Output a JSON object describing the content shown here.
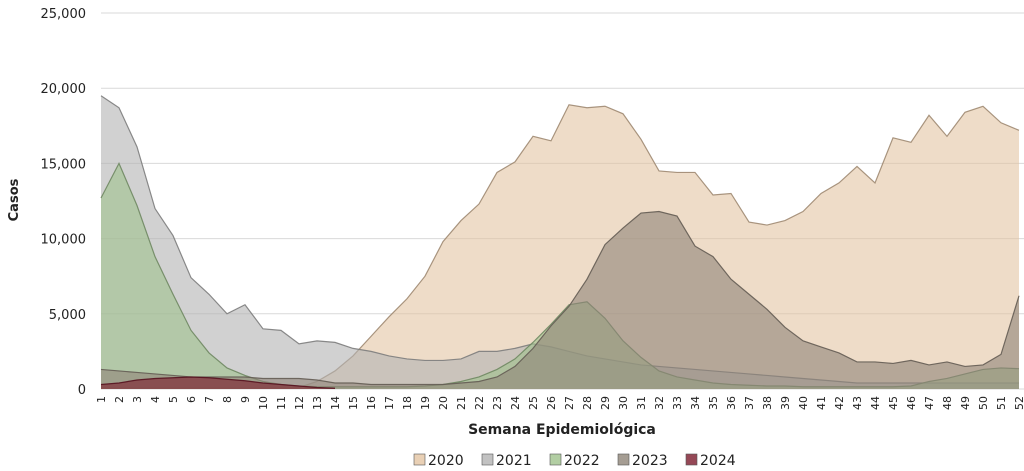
{
  "chart_data": {
    "type": "area",
    "xlabel": "Semana Epidemiológica",
    "ylabel": "Casos",
    "categories": [
      "1",
      "2",
      "3",
      "4",
      "5",
      "6",
      "7",
      "8",
      "9",
      "10",
      "11",
      "12",
      "13",
      "14",
      "15",
      "16",
      "17",
      "18",
      "19",
      "20",
      "21",
      "22",
      "23",
      "24",
      "25",
      "26",
      "27",
      "28",
      "29",
      "30",
      "31",
      "32",
      "33",
      "34",
      "35",
      "36",
      "37",
      "38",
      "39",
      "40",
      "41",
      "42",
      "43",
      "44",
      "45",
      "46",
      "47",
      "48",
      "49",
      "50",
      "51",
      "52"
    ],
    "ylim": [
      0,
      25000
    ],
    "yticks": [
      0,
      {
        "value": 5000,
        "label": "5,000"
      },
      {
        "value": 10000,
        "label": "10,000"
      },
      {
        "value": 15000,
        "label": "15,000"
      },
      {
        "value": 20000,
        "label": "20,000"
      },
      {
        "value": 25000,
        "label": "25,000"
      }
    ],
    "grid": true,
    "series": [
      {
        "name": "2020",
        "color": "#e3c4a3",
        "values": [
          100,
          100,
          100,
          100,
          100,
          100,
          100,
          100,
          100,
          100,
          100,
          100,
          500,
          1200,
          2200,
          3500,
          4800,
          6000,
          7500,
          9800,
          11200,
          12300,
          14400,
          15100,
          16800,
          16500,
          18900,
          18700,
          18800,
          18300,
          16600,
          14500,
          14400,
          14400,
          12900,
          13000,
          11100,
          10900,
          11200,
          11800,
          13000,
          13700,
          14800,
          13700,
          16700,
          16400,
          18200,
          16800,
          18400,
          18800,
          17700,
          17200
        ]
      },
      {
        "name": "2021",
        "color": "#b3b3b3",
        "values": [
          19500,
          18700,
          16100,
          12000,
          10200,
          7400,
          6300,
          5000,
          5600,
          4000,
          3900,
          3000,
          3200,
          3100,
          2700,
          2500,
          2200,
          2000,
          1900,
          1900,
          2000,
          2500,
          2500,
          2700,
          3000,
          2800,
          2500,
          2200,
          2000,
          1800,
          1600,
          1500,
          1400,
          1300,
          1200,
          1100,
          1000,
          900,
          800,
          700,
          600,
          500,
          400,
          400,
          400,
          400,
          400,
          400,
          400,
          400,
          400,
          400
        ]
      },
      {
        "name": "2022",
        "color": "#9fc28c",
        "values": [
          12700,
          15000,
          12200,
          8800,
          6300,
          3900,
          2400,
          1400,
          900,
          500,
          300,
          200,
          150,
          150,
          150,
          150,
          150,
          150,
          200,
          300,
          500,
          800,
          1300,
          2000,
          3100,
          4300,
          5600,
          5800,
          4700,
          3200,
          2100,
          1200,
          800,
          600,
          400,
          300,
          250,
          200,
          200,
          150,
          150,
          150,
          150,
          150,
          150,
          200,
          500,
          700,
          1000,
          1300,
          1400,
          1350
        ]
      },
      {
        "name": "2023",
        "color": "#8f8478",
        "values": [
          1300,
          1200,
          1100,
          1000,
          900,
          800,
          800,
          800,
          800,
          700,
          700,
          700,
          600,
          400,
          400,
          300,
          300,
          300,
          300,
          300,
          400,
          500,
          800,
          1500,
          2700,
          4200,
          5500,
          7300,
          9600,
          10700,
          11700,
          11800,
          11500,
          9500,
          8800,
          7300,
          6300,
          5300,
          4100,
          3200,
          2800,
          2400,
          1800,
          1800,
          1700,
          1900,
          1600,
          1800,
          1500,
          1600,
          2300,
          6200
        ]
      },
      {
        "name": "2024",
        "color": "#7b1a2c",
        "values": [
          300,
          400,
          600,
          700,
          750,
          800,
          750,
          650,
          550,
          400,
          300,
          200,
          100,
          50,
          null,
          null,
          null,
          null,
          null,
          null,
          null,
          null,
          null,
          null,
          null,
          null,
          null,
          null,
          null,
          null,
          null,
          null,
          null,
          null,
          null,
          null,
          null,
          null,
          null,
          null,
          null,
          null,
          null,
          null,
          null,
          null,
          null,
          null,
          null,
          null,
          null,
          null
        ]
      }
    ]
  }
}
